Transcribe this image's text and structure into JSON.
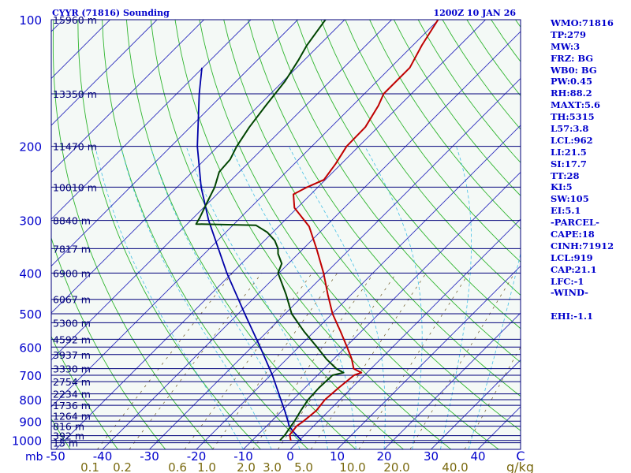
{
  "chart_data": {
    "type": "line",
    "title": "CYYR (71816) Sounding",
    "time": "1200Z 10 JAN 26",
    "x_axis_unit": "C",
    "y_axis_unit": "mb",
    "mixing_ratio_unit": "g/kg",
    "pressure_levels": [
      1000,
      900,
      800,
      700,
      600,
      500,
      400,
      300,
      200,
      100
    ],
    "height_labels": [
      {
        "p": 1013,
        "label": "15 m"
      },
      {
        "p": 974,
        "label": "392 m"
      },
      {
        "p": 925,
        "label": "816 m"
      },
      {
        "p": 875,
        "label": "1264 m"
      },
      {
        "p": 825,
        "label": "1736 m"
      },
      {
        "p": 775,
        "label": "2234 m"
      },
      {
        "p": 725,
        "label": "2754 m"
      },
      {
        "p": 675,
        "label": "3330 m"
      },
      {
        "p": 625,
        "label": "3937 m"
      },
      {
        "p": 575,
        "label": "4592 m"
      },
      {
        "p": 525,
        "label": "5300 m"
      },
      {
        "p": 462,
        "label": "6067 m"
      },
      {
        "p": 400,
        "label": "6900 m"
      },
      {
        "p": 350,
        "label": "7817 m"
      },
      {
        "p": 300,
        "label": "8840 m"
      },
      {
        "p": 250,
        "label": "10010 m"
      },
      {
        "p": 200,
        "label": "11470 m"
      },
      {
        "p": 150,
        "label": "13350 m"
      },
      {
        "p": 100,
        "label": "15960 m"
      }
    ],
    "temperature_ticks": [
      -50,
      -40,
      -30,
      -20,
      -10,
      0,
      10,
      20,
      30,
      40
    ],
    "mixing_ratio_labels": [
      "0.1",
      "0.2",
      "0.6",
      "1.0",
      "2.0",
      "3.0",
      "5.0",
      "10.0",
      "20.0",
      "40.0"
    ],
    "mixing_ratios": [
      0.1,
      0.2,
      0.6,
      1.0,
      2.0,
      3.0,
      5.0,
      10.0,
      20.0,
      40.0
    ],
    "temperature_profile": [
      {
        "p": 1000,
        "t": -1.8
      },
      {
        "p": 970,
        "t": -3.2
      },
      {
        "p": 925,
        "t": -3.6
      },
      {
        "p": 900,
        "t": -3.2
      },
      {
        "p": 850,
        "t": -2.7
      },
      {
        "p": 800,
        "t": -3.2
      },
      {
        "p": 750,
        "t": -2.8
      },
      {
        "p": 700,
        "t": -2.2
      },
      {
        "p": 690,
        "t": -1.2
      },
      {
        "p": 675,
        "t": -3.7
      },
      {
        "p": 640,
        "t": -6.2
      },
      {
        "p": 600,
        "t": -9.7
      },
      {
        "p": 550,
        "t": -14.5
      },
      {
        "p": 500,
        "t": -19.9
      },
      {
        "p": 450,
        "t": -25.0
      },
      {
        "p": 400,
        "t": -30.5
      },
      {
        "p": 350,
        "t": -37.2
      },
      {
        "p": 310,
        "t": -43.5
      },
      {
        "p": 280,
        "t": -50.6
      },
      {
        "p": 260,
        "t": -53.7
      },
      {
        "p": 250,
        "t": -52.3
      },
      {
        "p": 240,
        "t": -50.3
      },
      {
        "p": 220,
        "t": -51.2
      },
      {
        "p": 200,
        "t": -52.6
      },
      {
        "p": 180,
        "t": -52.7
      },
      {
        "p": 160,
        "t": -54.5
      },
      {
        "p": 150,
        "t": -55.9
      },
      {
        "p": 130,
        "t": -55.9
      },
      {
        "p": 115,
        "t": -58.1
      },
      {
        "p": 100,
        "t": -60.1
      }
    ],
    "dewpoint_profile": [
      {
        "p": 1000,
        "t": -4.1
      },
      {
        "p": 970,
        "t": -4.2
      },
      {
        "p": 925,
        "t": -4.8
      },
      {
        "p": 900,
        "t": -5.1
      },
      {
        "p": 850,
        "t": -6.0
      },
      {
        "p": 800,
        "t": -6.8
      },
      {
        "p": 750,
        "t": -7.0
      },
      {
        "p": 700,
        "t": -6.8
      },
      {
        "p": 690,
        "t": -5.0
      },
      {
        "p": 675,
        "t": -7.4
      },
      {
        "p": 640,
        "t": -11.6
      },
      {
        "p": 600,
        "t": -16.1
      },
      {
        "p": 550,
        "t": -22.3
      },
      {
        "p": 500,
        "t": -28.6
      },
      {
        "p": 450,
        "t": -33.9
      },
      {
        "p": 400,
        "t": -40.2
      },
      {
        "p": 380,
        "t": -41.4
      },
      {
        "p": 360,
        "t": -44.3
      },
      {
        "p": 350,
        "t": -45.4
      },
      {
        "p": 335,
        "t": -47.8
      },
      {
        "p": 320,
        "t": -51.2
      },
      {
        "p": 308,
        "t": -55.1
      },
      {
        "p": 306,
        "t": -68.1
      },
      {
        "p": 295,
        "t": -68.7
      },
      {
        "p": 270,
        "t": -70.5
      },
      {
        "p": 250,
        "t": -72.0
      },
      {
        "p": 230,
        "t": -74.3
      },
      {
        "p": 215,
        "t": -74.6
      },
      {
        "p": 200,
        "t": -76.0
      },
      {
        "p": 180,
        "t": -77.4
      },
      {
        "p": 160,
        "t": -78.5
      },
      {
        "p": 140,
        "t": -79.6
      },
      {
        "p": 125,
        "t": -81.2
      },
      {
        "p": 115,
        "t": -82.6
      },
      {
        "p": 100,
        "t": -84.1
      }
    ],
    "parcel_path": [
      {
        "p": 1000,
        "t": 0.5
      },
      {
        "p": 950,
        "t": -3.4
      },
      {
        "p": 919,
        "t": -5.5
      },
      {
        "p": 900,
        "t": -6.5
      },
      {
        "p": 850,
        "t": -9.4
      },
      {
        "p": 800,
        "t": -12.6
      },
      {
        "p": 700,
        "t": -19.6
      },
      {
        "p": 600,
        "t": -28.2
      },
      {
        "p": 500,
        "t": -38.6
      },
      {
        "p": 400,
        "t": -51.1
      },
      {
        "p": 300,
        "t": -66.2
      },
      {
        "p": 250,
        "t": -74.9
      },
      {
        "p": 200,
        "t": -84.4
      },
      {
        "p": 150,
        "t": -95.2
      },
      {
        "p": 130,
        "t": -100.2
      }
    ],
    "stability_indices": [
      "WMO:71816",
      "TP:279",
      "MW:3",
      "FRZ: BG",
      "WB0: BG",
      "PW:0.45",
      "RH:88.2",
      "MAXT:5.6",
      "TH:5315",
      "L57:3.8",
      "LCL:962",
      "LI:21.5",
      "SI:17.7",
      "TT:28",
      "KI:5",
      "SW:105",
      "EI:5.1",
      "-PARCEL-",
      "CAPE:18",
      "CINH:71912",
      "LCL:919",
      "CAP:21.1",
      "LFC:-1",
      "-WIND-",
      "",
      "EHI:-1.1"
    ]
  },
  "colors": {
    "background": "#ffffff",
    "plot_background": "#f4f9f6",
    "isobar": "#00007a",
    "isotherm": "#2d2dbd",
    "dry_adiabat": "#2fb52f",
    "moist_adiabat": "#44c0e6",
    "mixing_ratio": "#6a5520",
    "temperature": "#c00000",
    "dewpoint": "#004400",
    "parcel": "#0000a8",
    "label_blue": "#0000cc",
    "label_olive": "#7a6a10"
  }
}
